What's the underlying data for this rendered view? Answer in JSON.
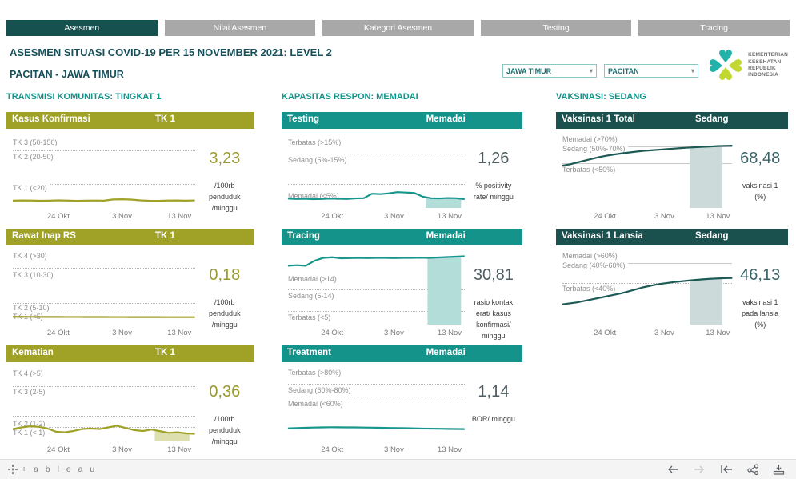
{
  "tabs": [
    {
      "label": "Asesmen",
      "active": true
    },
    {
      "label": "Nilai Asesmen",
      "active": false
    },
    {
      "label": "Kategori Asesmen",
      "active": false
    },
    {
      "label": "Testing",
      "active": false
    },
    {
      "label": "Tracing",
      "active": false
    }
  ],
  "header": {
    "title": "ASESMEN SITUASI COVID-19 PER 15 NOVEMBER 2021: LEVEL 2",
    "subtitle": "PACITAN - JAWA TIMUR",
    "filters": [
      {
        "value": "JAWA TIMUR"
      },
      {
        "value": "PACITAN"
      }
    ],
    "logo_lines": [
      "KEMENTERIAN",
      "KESEHATAN",
      "REPUBLIK",
      "INDONESIA"
    ]
  },
  "columns": [
    {
      "title": "TRANSMISI KOMUNITAS: TINGKAT 1",
      "chart_ids": [
        0,
        1,
        2
      ]
    },
    {
      "title": "KAPASITAS RESPON: MEMADAI",
      "chart_ids": [
        3,
        4,
        5
      ]
    },
    {
      "title": "VAKSINASI: SEDANG",
      "chart_ids": [
        6,
        7
      ]
    }
  ],
  "colors": {
    "olive": {
      "header": "#a0a127",
      "line": "#a0a127",
      "value": "#9a9b2e",
      "band": "#dedfae"
    },
    "teal": {
      "header": "#14938a",
      "line": "#17968c",
      "value": "#4e5d61",
      "band": "#b2ddd8"
    },
    "darkteal": {
      "header": "#1a514f",
      "line": "#1d5a55",
      "value": "#3d6468",
      "band": "#ccdbd9"
    }
  },
  "chart_data": [
    {
      "type": "line",
      "title": "Kasus Konfirmasi",
      "status": "TK 1",
      "theme": "olive",
      "value": "3,23",
      "unit_lines": [
        "/100rb",
        "penduduk",
        "/minggu"
      ],
      "ylabel": "kasus konfirmasi /100rb penduduk /minggu",
      "x_ticks": [
        "24 Okt",
        "3 Nov",
        "13 Nov"
      ],
      "x_tick_f": [
        0.25,
        0.6,
        0.915
      ],
      "guides": [
        {
          "label": "TK 3 (50-150)",
          "label_f": 0.1,
          "line_f": 0.21,
          "line_style": "dotted"
        },
        {
          "label": "TK 2 (20-50)",
          "label_f": 0.3,
          "line_f": 0.67,
          "line_style": "dotted"
        },
        {
          "label": "TK 1 (<20)",
          "label_f": 0.72
        }
      ],
      "series": [
        3.0,
        3.2,
        3.1,
        2.9,
        3.0,
        3.3,
        3.1,
        2.8,
        3.0,
        3.15,
        3.0,
        4.2,
        4.4,
        4.1,
        3.3,
        2.9,
        2.8,
        3.1,
        3.2,
        3.0,
        3.23
      ],
      "scale": [
        [
          0,
          0.94
        ],
        [
          20,
          0.67
        ],
        [
          50,
          0.21
        ],
        [
          150,
          0
        ]
      ],
      "highlight": null
    },
    {
      "type": "line",
      "title": "Rawat Inap RS",
      "status": "TK 1",
      "theme": "olive",
      "value": "0,18",
      "unit_lines": [
        "/100rb",
        "penduduk",
        "/minggu"
      ],
      "ylabel": "rawat inap RS /100rb penduduk /minggu",
      "x_ticks": [
        "24 Okt",
        "3 Nov",
        "13 Nov"
      ],
      "x_tick_f": [
        0.25,
        0.6,
        0.915
      ],
      "guides": [
        {
          "label": "TK 4 (>30)",
          "label_f": 0.06,
          "line_f": 0.22,
          "line_style": "dotted"
        },
        {
          "label": "TK 3 (10-30)",
          "label_f": 0.32,
          "line_f": 0.7,
          "line_style": "dotted"
        },
        {
          "label": "TK 2 (5-10)",
          "label_f": 0.77,
          "line_f": 0.835,
          "line_style": "dotted"
        },
        {
          "label": "TK 1 (<5)",
          "label_f": 0.89
        }
      ],
      "series": [
        0.55,
        0.52,
        0.5,
        0.47,
        0.44,
        0.42,
        0.4,
        0.38,
        0.35,
        0.33,
        0.31,
        0.3,
        0.28,
        0.26,
        0.25,
        0.23,
        0.22,
        0.2,
        0.19,
        0.18,
        0.18
      ],
      "scale": [
        [
          0,
          0.9
        ],
        [
          5,
          0.835
        ],
        [
          10,
          0.7
        ],
        [
          30,
          0.22
        ],
        [
          60,
          0
        ]
      ],
      "highlight": null
    },
    {
      "type": "line",
      "title": "Kematian",
      "status": "TK 1",
      "theme": "olive",
      "value": "0,36",
      "unit_lines": [
        "/100rb",
        "penduduk",
        "/minggu"
      ],
      "ylabel": "kematian /100rb penduduk /minggu",
      "x_ticks": [
        "24 Okt",
        "3 Nov",
        "13 Nov"
      ],
      "x_tick_f": [
        0.25,
        0.6,
        0.915
      ],
      "guides": [
        {
          "label": "TK 4 (>5)",
          "label_f": 0.07,
          "line_f": 0.24,
          "line_style": "dotted"
        },
        {
          "label": "TK 3 (2-5)",
          "label_f": 0.32,
          "line_f": 0.65,
          "line_style": "dotted"
        },
        {
          "label": "TK 2 (1-2)",
          "label_f": 0.76,
          "line_f": 0.8,
          "line_style": "dotted"
        },
        {
          "label": "TK 1 (< 1)",
          "label_f": 0.88
        }
      ],
      "series": [
        0.8,
        0.95,
        1.05,
        1.0,
        0.85,
        0.55,
        0.5,
        0.62,
        0.8,
        0.85,
        0.8,
        0.95,
        1.1,
        0.9,
        0.7,
        0.62,
        0.75,
        0.6,
        0.45,
        0.5,
        0.4,
        0.36
      ],
      "scale": [
        [
          0,
          0.95
        ],
        [
          1,
          0.8
        ],
        [
          2,
          0.65
        ],
        [
          5,
          0.24
        ],
        [
          10,
          0
        ]
      ],
      "highlight": {
        "x0_f": 0.78,
        "x1_f": 0.97
      }
    },
    {
      "type": "line",
      "title": "Testing",
      "status": "Memadai",
      "theme": "teal",
      "value": "1,26",
      "unit_lines": [
        "% positivity",
        "rate/ minggu"
      ],
      "ylabel": "% positivity rate/ minggu",
      "x_ticks": [
        "24 Okt",
        "3 Nov",
        "13 Nov"
      ],
      "x_tick_f": [
        0.25,
        0.6,
        0.915
      ],
      "guides": [
        {
          "label": "Terbatas (>15%)",
          "label_f": 0.1,
          "line_f": 0.25,
          "line_style": "dotted"
        },
        {
          "label": "Sedang (5%-15%)",
          "label_f": 0.34,
          "line_f": 0.67,
          "line_style": "dotted"
        },
        {
          "label": "Memadai (<5%)",
          "label_f": 0.835
        }
      ],
      "series": [
        1.4,
        1.3,
        1.35,
        1.25,
        1.3,
        1.4,
        1.35,
        1.3,
        1.45,
        1.5,
        2.6,
        2.5,
        2.7,
        3.0,
        2.9,
        2.8,
        1.9,
        1.5,
        1.45,
        1.55,
        1.5,
        1.26
      ],
      "scale": [
        [
          0,
          0.95
        ],
        [
          5,
          0.67
        ],
        [
          15,
          0.25
        ],
        [
          30,
          0
        ]
      ],
      "highlight": {
        "x0_f": 0.78,
        "x1_f": 0.98
      }
    },
    {
      "type": "line",
      "title": "Tracing",
      "status": "Memadai",
      "theme": "teal",
      "value": "30,81",
      "unit_lines": [
        "rasio kontak",
        "erat/ kasus",
        "konfirmasi/",
        "minggu"
      ],
      "ylabel": "rasio kontak erat/ kasus konfirmasi/ minggu",
      "x_ticks": [
        "24 Okt",
        "3 Nov",
        "13 Nov"
      ],
      "x_tick_f": [
        0.25,
        0.6,
        0.915
      ],
      "guides": [
        {
          "label": "Memadai (>14)",
          "label_f": 0.37,
          "line_f": 0.52,
          "line_style": "dotted"
        },
        {
          "label": "Sedang (5-14)",
          "label_f": 0.6,
          "line_f": 0.81,
          "line_style": "dotted"
        },
        {
          "label": "Terbatas (<5)",
          "label_f": 0.9
        }
      ],
      "series": [
        26.0,
        26.3,
        26.0,
        28.5,
        30.0,
        30.3,
        29.8,
        29.9,
        30.0,
        29.9,
        30.0,
        30.0,
        29.9,
        30.0,
        30.0,
        30.1,
        30.0,
        30.2,
        30.4,
        30.6,
        30.81
      ],
      "scale": [
        [
          0,
          1.0
        ],
        [
          5,
          0.81
        ],
        [
          14,
          0.52
        ],
        [
          33,
          0
        ]
      ],
      "highlight": {
        "x0_f": 0.79,
        "x1_f": 0.98
      }
    },
    {
      "type": "line",
      "title": "Treatment",
      "status": "Memadai",
      "theme": "teal",
      "value": "1,14",
      "unit_lines": [
        "BOR/ minggu"
      ],
      "ylabel": "BOR/ minggu",
      "x_ticks": [
        "24 Okt",
        "3 Nov",
        "13 Nov"
      ],
      "x_tick_f": [
        0.25,
        0.6,
        0.915
      ],
      "guides": [
        {
          "label": "Terbatas (>80%)",
          "label_f": 0.05,
          "line_f": 0.21,
          "line_style": "dotted"
        },
        {
          "label": "Sedang (60%-80%)",
          "label_f": 0.3,
          "line_f": 0.385,
          "line_style": "dotted"
        },
        {
          "label": "Memadai (<60%)",
          "label_f": 0.48
        }
      ],
      "series": [
        2.5,
        3.0,
        3.5,
        4.0,
        4.3,
        4.5,
        4.4,
        4.3,
        4.2,
        4.0,
        3.8,
        3.5,
        3.2,
        3.0,
        2.8,
        2.5,
        2.2,
        2.0,
        1.8,
        1.6,
        1.4,
        1.14
      ],
      "scale": [
        [
          0,
          0.84
        ],
        [
          60,
          0.385
        ],
        [
          80,
          0.21
        ],
        [
          100,
          0.04
        ]
      ],
      "highlight": null
    },
    {
      "type": "line",
      "title": "Vaksinasi 1 Total",
      "status": "Sedang",
      "theme": "darkteal",
      "value": "68,48",
      "unit_lines": [
        "vaksinasi 1",
        "(%)"
      ],
      "ylabel": "vaksinasi 1 (%)",
      "x_ticks": [
        "24 Okt",
        "3 Nov",
        "13 Nov"
      ],
      "x_tick_f": [
        0.25,
        0.6,
        0.915
      ],
      "guides": [
        {
          "label": "Memadai (>70%)",
          "label_f": 0.05,
          "line_f": 0.15,
          "line_style": "solid"
        },
        {
          "label": "Sedang (50%-70%)",
          "label_f": 0.19,
          "line_f": 0.39,
          "line_style": "solid"
        },
        {
          "label": "Terbatas (<50%)",
          "label_f": 0.47
        }
      ],
      "series": [
        46.5,
        48.0,
        50.0,
        52.0,
        54.0,
        56.0,
        57.5,
        58.8,
        60.0,
        61.0,
        62.0,
        62.8,
        63.4,
        64.0,
        64.6,
        65.2,
        65.8,
        66.3,
        66.8,
        67.2,
        67.6,
        68.0,
        68.3,
        68.48
      ],
      "scale": [
        [
          0,
          1.0
        ],
        [
          80,
          0
        ]
      ],
      "highlight": {
        "x0_f": 0.75,
        "x1_f": 0.94
      }
    },
    {
      "type": "line",
      "title": "Vaksinasi 1 Lansia",
      "status": "Sedang",
      "theme": "darkteal",
      "value": "46,13",
      "unit_lines": [
        "vaksinasi 1",
        "pada lansia",
        "(%)"
      ],
      "ylabel": "vaksinasi 1 pada lansia (%)",
      "x_ticks": [
        "24 Okt",
        "3 Nov",
        "13 Nov"
      ],
      "x_tick_f": [
        0.25,
        0.6,
        0.915
      ],
      "guides": [
        {
          "label": "Memadai (>60%)",
          "label_f": 0.05,
          "line_f": 0.15,
          "line_style": "solid"
        },
        {
          "label": "Sedang (40%-60%)",
          "label_f": 0.19,
          "line_f": 0.43,
          "line_style": "dotted"
        },
        {
          "label": "Terbatas (<40%)",
          "label_f": 0.5
        }
      ],
      "series": [
        20.0,
        21.0,
        22.0,
        23.5,
        25.0,
        26.5,
        28.0,
        29.5,
        31.0,
        33.0,
        35.0,
        37.0,
        38.5,
        40.0,
        41.0,
        42.0,
        42.8,
        43.5,
        44.2,
        44.8,
        45.3,
        45.7,
        46.0,
        46.13
      ],
      "scale": [
        [
          0,
          1.0
        ],
        [
          72,
          0
        ]
      ],
      "highlight": {
        "x0_f": 0.75,
        "x1_f": 0.94
      }
    }
  ],
  "footer": {
    "wordmark": "+ a b l e a u"
  }
}
